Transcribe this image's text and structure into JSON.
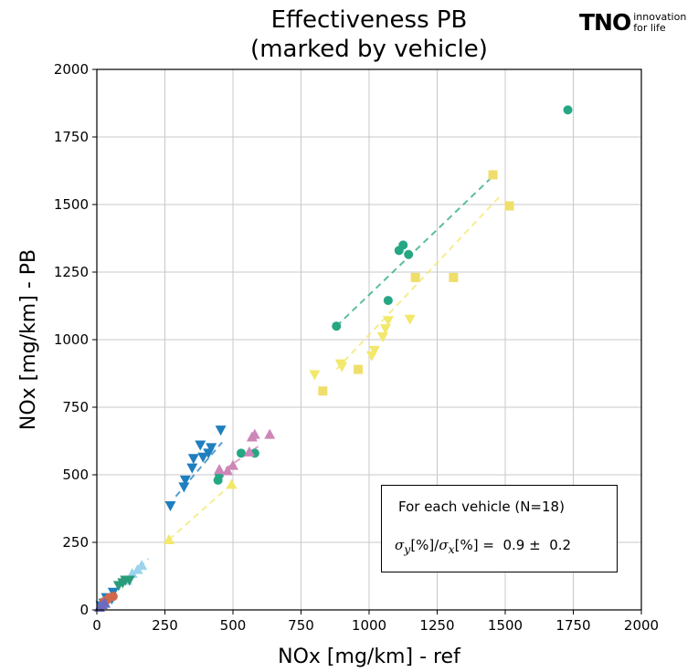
{
  "chart_data": {
    "type": "scatter",
    "title_lines": [
      "Effectiveness PB",
      "(marked by vehicle)"
    ],
    "xlabel": "NOx [mg/km] - ref",
    "ylabel": "NOx [mg/km] - PB",
    "xlim": [
      0,
      2000
    ],
    "ylim": [
      0,
      2000
    ],
    "xticks": [
      "0",
      "250",
      "500",
      "750",
      "1000",
      "1250",
      "1500",
      "1750",
      "2000"
    ],
    "yticks": [
      "0",
      "250",
      "500",
      "750",
      "1000",
      "1250",
      "1500",
      "1750",
      "2000"
    ],
    "grid": true,
    "series": [
      {
        "marker": "circle",
        "color": "#26a784",
        "points": [
          [
            880,
            1050
          ],
          [
            1070,
            1145
          ],
          [
            1110,
            1330
          ],
          [
            1125,
            1350
          ],
          [
            1145,
            1315
          ],
          [
            1730,
            1850
          ],
          [
            530,
            580
          ],
          [
            580,
            580
          ],
          [
            445,
            480
          ],
          [
            450,
            500
          ]
        ],
        "fit": [
          [
            880,
            1050
          ],
          [
            1460,
            1610
          ]
        ]
      },
      {
        "marker": "triangle-down",
        "color": "#f2e86b",
        "points": [
          [
            800,
            870
          ],
          [
            895,
            910
          ],
          [
            900,
            900
          ],
          [
            1010,
            940
          ],
          [
            1020,
            960
          ],
          [
            1050,
            1010
          ],
          [
            1060,
            1040
          ],
          [
            1070,
            1070
          ],
          [
            1150,
            1075
          ]
        ],
        "fit": [
          [
            880,
            890
          ],
          [
            1480,
            1530
          ]
        ]
      },
      {
        "marker": "square",
        "color": "#f0de6a",
        "points": [
          [
            830,
            810
          ],
          [
            960,
            890
          ],
          [
            1170,
            1230
          ],
          [
            1310,
            1230
          ],
          [
            1455,
            1610
          ],
          [
            1515,
            1495
          ]
        ],
        "fit": null
      },
      {
        "marker": "triangle-down",
        "color": "#1f7fbf",
        "points": [
          [
            270,
            385
          ],
          [
            320,
            455
          ],
          [
            325,
            480
          ],
          [
            350,
            525
          ],
          [
            355,
            560
          ],
          [
            380,
            610
          ],
          [
            390,
            565
          ],
          [
            410,
            580
          ],
          [
            420,
            600
          ],
          [
            455,
            665
          ]
        ],
        "fit": [
          [
            290,
            420
          ],
          [
            460,
            620
          ]
        ]
      },
      {
        "marker": "triangle-up",
        "color": "#cd86b8",
        "points": [
          [
            450,
            520
          ],
          [
            480,
            515
          ],
          [
            500,
            535
          ],
          [
            560,
            585
          ],
          [
            570,
            640
          ],
          [
            580,
            650
          ],
          [
            635,
            650
          ]
        ],
        "fit": [
          [
            440,
            500
          ],
          [
            600,
            610
          ]
        ]
      },
      {
        "marker": "triangle-up",
        "color": "#f2e86b",
        "points": [
          [
            265,
            260
          ],
          [
            495,
            465
          ]
        ],
        "fit": [
          [
            265,
            260
          ],
          [
            500,
            470
          ]
        ]
      },
      {
        "marker": "triangle-up",
        "color": "#9bd3ee",
        "points": [
          [
            110,
            110
          ],
          [
            130,
            135
          ],
          [
            150,
            150
          ],
          [
            165,
            165
          ]
        ],
        "fit": [
          [
            100,
            100
          ],
          [
            190,
            190
          ]
        ]
      },
      {
        "marker": "triangle-down",
        "color": "#2a9c7a",
        "points": [
          [
            80,
            90
          ],
          [
            95,
            100
          ],
          [
            105,
            110
          ],
          [
            120,
            110
          ]
        ],
        "fit": null
      },
      {
        "marker": "triangle-down",
        "color": "#1f7fbf",
        "points": [
          [
            15,
            15
          ],
          [
            25,
            25
          ],
          [
            35,
            45
          ],
          [
            55,
            40
          ],
          [
            60,
            65
          ]
        ],
        "fit": null
      },
      {
        "marker": "circle",
        "color": "#d0684a",
        "points": [
          [
            25,
            30
          ],
          [
            35,
            35
          ],
          [
            45,
            45
          ],
          [
            60,
            50
          ]
        ],
        "fit": null
      },
      {
        "marker": "triangle-up",
        "color": "#6b6bc0",
        "points": [
          [
            10,
            10
          ],
          [
            20,
            20
          ],
          [
            30,
            25
          ]
        ],
        "fit": null
      }
    ]
  },
  "annotation": {
    "line1": "For each vehicle (N=18)",
    "sigma_y": "σ",
    "sub_y": "y",
    "mid": "[%]/",
    "sigma_x": "σ",
    "sub_x": "x",
    "tail": "[%] =  0.9 ±  0.2"
  },
  "logo": {
    "mark": "TNO",
    "line1": "innovation",
    "line2": "for life"
  }
}
